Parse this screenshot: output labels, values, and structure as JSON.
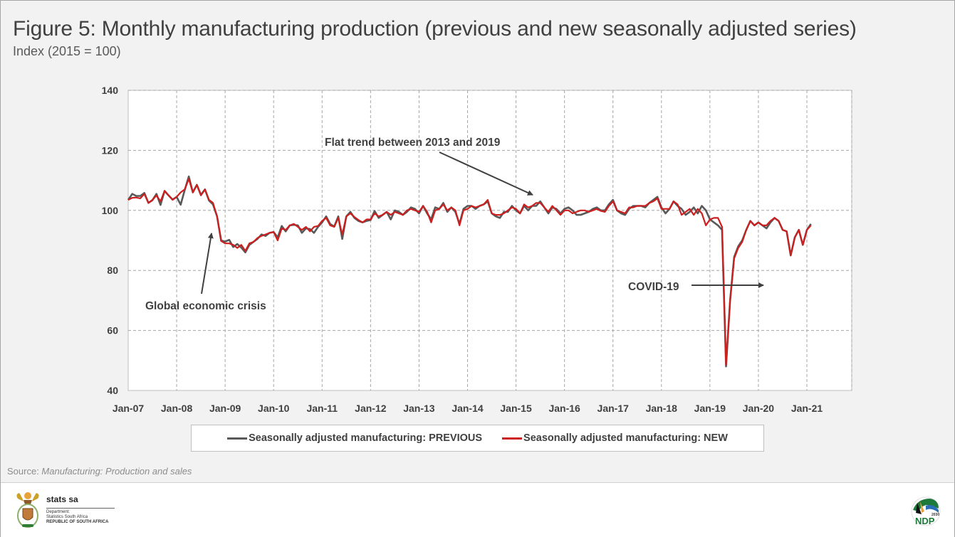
{
  "header": {
    "title": "Figure 5: Monthly manufacturing production (previous and new seasonally adjusted series)",
    "subtitle": "Index (2015 = 100)"
  },
  "colors": {
    "previous": "#595959",
    "new": "#cc1f1f",
    "grid": "#a6a6a6",
    "annotation": "#404040"
  },
  "chart_data": {
    "type": "line",
    "title": "Figure 5: Monthly manufacturing production (previous and new seasonally adjusted series)",
    "subtitle": "Index (2015 = 100)",
    "xlabel": "",
    "ylabel": "Index (2015 = 100)",
    "ylim": [
      40,
      140
    ],
    "yticks": [
      "140",
      "120",
      "100",
      "80",
      "60",
      "40"
    ],
    "ytick_values": [
      140,
      120,
      100,
      80,
      60,
      40
    ],
    "xticks": [
      "Jan-07",
      "Jan-08",
      "Jan-09",
      "Jan-10",
      "Jan-11",
      "Jan-12",
      "Jan-13",
      "Jan-14",
      "Jan-15",
      "Jan-16",
      "Jan-17",
      "Jan-18",
      "Jan-19",
      "Jan-20",
      "Jan-21"
    ],
    "x_start": "Jan-07",
    "x_frequency": "monthly",
    "grid": true,
    "legend_position": "bottom",
    "series": [
      {
        "name": "Seasonally adjusted manufacturing: PREVIOUS",
        "color": "#595959",
        "values": [
          103.5,
          105.5,
          104.8,
          104.8,
          105.8,
          102.5,
          103.4,
          105.5,
          101.8,
          106.5,
          105.0,
          103.6,
          104.5,
          101.9,
          106.8,
          111.3,
          106.0,
          108.5,
          105.2,
          107.0,
          103.3,
          102.0,
          98.0,
          90.0,
          89.6,
          90.2,
          87.8,
          88.8,
          87.6,
          86.0,
          88.5,
          89.5,
          90.5,
          92.0,
          91.5,
          92.5,
          92.8,
          91.0,
          94.8,
          93.0,
          95.0,
          95.2,
          95.0,
          92.5,
          94.0,
          93.8,
          92.5,
          94.5,
          96.0,
          98.0,
          95.5,
          94.6,
          98.0,
          90.5,
          98.0,
          99.5,
          97.5,
          96.5,
          96.0,
          96.5,
          96.8,
          99.8,
          97.5,
          98.5,
          99.5,
          97.0,
          100.0,
          99.5,
          98.5,
          99.5,
          101.0,
          100.5,
          99.0,
          101.5,
          99.0,
          97.0,
          101.0,
          100.5,
          102.5,
          99.5,
          101.0,
          99.5,
          95.5,
          100.5,
          101.5,
          101.5,
          100.5,
          101.5,
          102.0,
          103.0,
          99.0,
          98.0,
          97.5,
          99.5,
          99.5,
          101.5,
          100.0,
          99.0,
          101.5,
          100.0,
          101.5,
          101.5,
          103.0,
          101.0,
          99.0,
          101.0,
          100.5,
          99.0,
          100.5,
          101.0,
          100.0,
          98.5,
          98.5,
          99.0,
          99.5,
          100.5,
          101.0,
          100.0,
          100.0,
          102.0,
          103.5,
          100.0,
          99.0,
          98.5,
          100.5,
          101.5,
          101.5,
          101.5,
          101.0,
          102.5,
          103.5,
          104.5,
          101.0,
          99.0,
          100.5,
          103.0,
          101.5,
          100.5,
          98.5,
          99.5,
          101.0,
          99.0,
          101.5,
          100.0,
          97.0,
          96.0,
          95.0,
          93.5,
          48.0,
          70.0,
          84.5,
          88.0,
          90.0,
          93.5,
          96.5,
          95.0,
          96.0,
          95.0,
          94.0,
          96.0,
          97.5,
          96.5,
          93.5,
          93.0,
          85.0,
          91.0,
          93.5,
          88.5,
          93.5,
          95.5
        ],
        "note": "values estimated from plot"
      },
      {
        "name": "Seasonally adjusted manufacturing: NEW",
        "color": "#cc1f1f",
        "values": [
          103.5,
          104.2,
          104.3,
          104.0,
          105.5,
          102.5,
          103.5,
          105.0,
          103.0,
          106.5,
          105.0,
          103.5,
          104.5,
          106.0,
          107.0,
          110.5,
          106.0,
          108.5,
          105.0,
          107.0,
          103.5,
          102.5,
          98.0,
          89.8,
          89.0,
          89.0,
          88.5,
          87.5,
          88.5,
          86.5,
          89.0,
          89.5,
          90.8,
          91.5,
          92.0,
          92.5,
          92.8,
          90.0,
          94.0,
          93.5,
          95.0,
          95.5,
          94.5,
          93.5,
          94.5,
          93.0,
          94.5,
          94.8,
          96.5,
          97.5,
          95.0,
          94.5,
          97.5,
          92.0,
          98.0,
          99.0,
          97.8,
          96.8,
          96.0,
          97.0,
          97.0,
          99.0,
          98.0,
          98.5,
          99.5,
          98.5,
          99.5,
          99.0,
          98.5,
          100.0,
          100.5,
          100.0,
          99.5,
          101.5,
          99.5,
          96.0,
          100.0,
          100.5,
          102.0,
          100.0,
          101.0,
          100.0,
          95.0,
          100.0,
          100.5,
          101.5,
          101.0,
          101.5,
          102.0,
          103.5,
          99.0,
          98.5,
          98.5,
          99.0,
          100.0,
          101.0,
          100.5,
          99.0,
          102.0,
          101.0,
          101.5,
          102.5,
          102.5,
          101.0,
          99.5,
          101.5,
          100.0,
          98.5,
          100.0,
          100.0,
          99.0,
          99.5,
          100.0,
          100.0,
          99.5,
          100.0,
          100.5,
          99.8,
          99.5,
          101.5,
          103.0,
          100.0,
          99.5,
          99.0,
          101.0,
          101.0,
          101.5,
          101.5,
          101.5,
          102.5,
          103.0,
          104.0,
          100.5,
          100.5,
          100.5,
          103.0,
          102.0,
          98.5,
          99.5,
          100.5,
          98.5,
          100.5,
          99.0,
          95.0,
          97.0,
          97.5,
          97.5,
          94.5,
          48.5,
          70.0,
          84.0,
          87.5,
          89.5,
          93.5,
          96.5,
          95.0,
          96.0,
          95.0,
          95.0,
          96.5,
          97.5,
          96.5,
          93.5,
          93.0,
          85.0,
          91.0,
          93.5,
          88.5,
          93.5,
          95.0
        ],
        "note": "values estimated from plot"
      }
    ],
    "annotations": [
      {
        "text": "Flat trend between 2013 and 2019",
        "arrow_to": "Jun-15"
      },
      {
        "text": "Global economic crisis",
        "arrow_to": "Oct-08"
      },
      {
        "text": "COVID-19",
        "arrow_to": "Apr-20"
      }
    ]
  },
  "legend": {
    "previous_label": "Seasonally adjusted manufacturing: PREVIOUS",
    "new_label": "Seasonally adjusted manufacturing: NEW"
  },
  "source": {
    "prefix": "Source: ",
    "title": "Manufacturing: Production and sales"
  },
  "footer": {
    "org_name": "stats sa",
    "dept_line1": "Department:",
    "dept_line2": "Statistics South Africa",
    "dept_line3": "REPUBLIC OF SOUTH AFRICA",
    "ndp_label": "NDP",
    "ndp_year": "2030"
  }
}
